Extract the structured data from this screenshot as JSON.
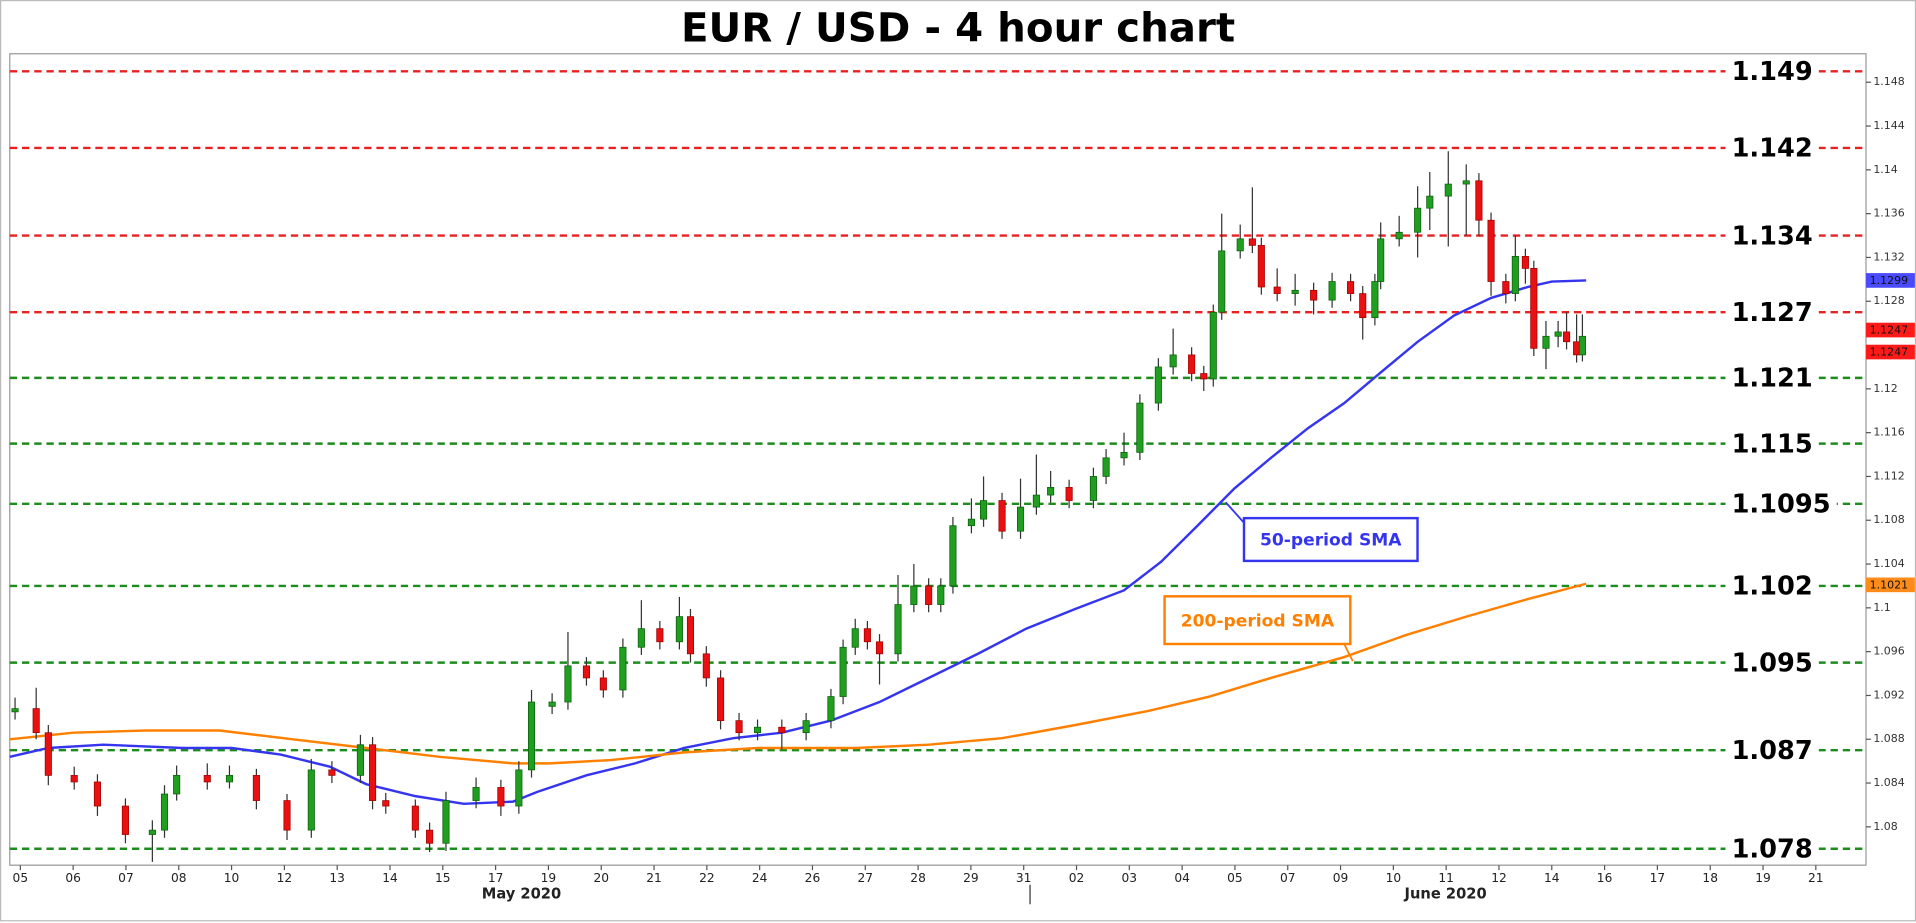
{
  "chart_data": {
    "type": "candlestick",
    "title": "EUR / USD - 4 hour chart",
    "xlim": [
      -0.2,
      34.95
    ],
    "ylim": [
      1.0765,
      1.1506
    ],
    "yticks": [
      1.148,
      1.144,
      1.14,
      1.136,
      1.132,
      1.128,
      1.12,
      1.116,
      1.112,
      1.108,
      1.104,
      1.1,
      1.096,
      1.092,
      1.088,
      1.084,
      1.08
    ],
    "xticks": [
      {
        "value": 0,
        "label": "05"
      },
      {
        "value": 1,
        "label": "06"
      },
      {
        "value": 2,
        "label": "07"
      },
      {
        "value": 3,
        "label": "08"
      },
      {
        "value": 4,
        "label": "10"
      },
      {
        "value": 5,
        "label": "12"
      },
      {
        "value": 6,
        "label": "13"
      },
      {
        "value": 7,
        "label": "14"
      },
      {
        "value": 8,
        "label": "15"
      },
      {
        "value": 9,
        "label": "17"
      },
      {
        "value": 10,
        "label": "19"
      },
      {
        "value": 11,
        "label": "20"
      },
      {
        "value": 12,
        "label": "21"
      },
      {
        "value": 13,
        "label": "22"
      },
      {
        "value": 14,
        "label": "24"
      },
      {
        "value": 15,
        "label": "26"
      },
      {
        "value": 16,
        "label": "27"
      },
      {
        "value": 17,
        "label": "28"
      },
      {
        "value": 18,
        "label": "29"
      },
      {
        "value": 19,
        "label": "31"
      },
      {
        "value": 20,
        "label": "02"
      },
      {
        "value": 21,
        "label": "03"
      },
      {
        "value": 22,
        "label": "04"
      },
      {
        "value": 23,
        "label": "05"
      },
      {
        "value": 24,
        "label": "07"
      },
      {
        "value": 25,
        "label": "09"
      },
      {
        "value": 26,
        "label": "10"
      },
      {
        "value": 27,
        "label": "11"
      },
      {
        "value": 28,
        "label": "12"
      },
      {
        "value": 29,
        "label": "14"
      },
      {
        "value": 30,
        "label": "16"
      },
      {
        "value": 31,
        "label": "17"
      },
      {
        "value": 32,
        "label": "18"
      },
      {
        "value": 33,
        "label": "19"
      },
      {
        "value": 34,
        "label": "21"
      }
    ],
    "month_labels": [
      {
        "x": 9.49,
        "text": "May 2020"
      },
      {
        "x": 26.99,
        "text": "June 2020"
      }
    ],
    "month_separators": [
      19.12
    ],
    "up_color": "#1f9e1f",
    "down_color": "#e81010",
    "candles": [
      [
        -0.1,
        1.0905,
        1.0918,
        1.0898,
        1.0908
      ],
      [
        0.3,
        1.0908,
        1.0927,
        1.088,
        1.0886
      ],
      [
        0.53,
        1.0886,
        1.0893,
        1.0838,
        1.0847
      ],
      [
        1.02,
        1.0847,
        1.0855,
        1.0834,
        1.0841
      ],
      [
        1.46,
        1.0841,
        1.0848,
        1.081,
        1.0819
      ],
      [
        1.99,
        1.0819,
        1.0826,
        1.0785,
        1.0793
      ],
      [
        2.5,
        1.0793,
        1.0806,
        1.0768,
        1.0797
      ],
      [
        2.73,
        1.0797,
        1.0838,
        1.079,
        1.083
      ],
      [
        2.96,
        1.083,
        1.0856,
        1.0824,
        1.0847
      ],
      [
        3.54,
        1.0847,
        1.0858,
        1.0834,
        1.0841
      ],
      [
        3.96,
        1.0841,
        1.0856,
        1.0835,
        1.0847
      ],
      [
        4.47,
        1.0847,
        1.0853,
        1.0816,
        1.0824
      ],
      [
        5.05,
        1.0824,
        1.083,
        1.0788,
        1.0797
      ],
      [
        5.51,
        1.0797,
        1.0862,
        1.079,
        1.0852
      ],
      [
        5.9,
        1.0852,
        1.086,
        1.084,
        1.0847
      ],
      [
        6.44,
        1.0847,
        1.0884,
        1.084,
        1.0875
      ],
      [
        6.67,
        1.0875,
        1.0882,
        1.0816,
        1.0824
      ],
      [
        6.92,
        1.0824,
        1.0831,
        1.0812,
        1.0819
      ],
      [
        7.48,
        1.0819,
        1.0825,
        1.079,
        1.0797
      ],
      [
        7.75,
        1.0797,
        1.0804,
        1.0777,
        1.0785
      ],
      [
        8.06,
        1.0785,
        1.0832,
        1.0778,
        1.0824
      ],
      [
        8.63,
        1.0824,
        1.0845,
        1.0817,
        1.0836
      ],
      [
        9.1,
        1.0836,
        1.0843,
        1.081,
        1.0819
      ],
      [
        9.44,
        1.0819,
        1.086,
        1.0812,
        1.0852
      ],
      [
        9.68,
        1.0852,
        1.0925,
        1.0845,
        1.0914
      ],
      [
        10.07,
        1.091,
        1.0922,
        1.0903,
        1.0914
      ],
      [
        10.37,
        1.0914,
        1.0978,
        1.0907,
        1.0947
      ],
      [
        10.72,
        1.0947,
        1.0955,
        1.0929,
        1.0936
      ],
      [
        11.04,
        1.0936,
        1.0943,
        1.0918,
        1.0925
      ],
      [
        11.41,
        1.0925,
        1.0972,
        1.0918,
        1.0964
      ],
      [
        11.76,
        1.0964,
        1.1007,
        1.0957,
        1.0981
      ],
      [
        12.11,
        1.0981,
        1.0988,
        1.0962,
        1.0969
      ],
      [
        12.48,
        1.0969,
        1.101,
        1.0962,
        1.0992
      ],
      [
        12.69,
        1.0992,
        1.0999,
        1.095,
        1.0958
      ],
      [
        12.99,
        1.0958,
        1.0965,
        1.0928,
        1.0936
      ],
      [
        13.26,
        1.0936,
        1.0943,
        1.0889,
        1.0897
      ],
      [
        13.61,
        1.0897,
        1.0904,
        1.0879,
        1.0886
      ],
      [
        13.96,
        1.0886,
        1.0898,
        1.0879,
        1.0891
      ],
      [
        14.42,
        1.0891,
        1.0898,
        1.0871,
        1.0886
      ],
      [
        14.88,
        1.0886,
        1.0904,
        1.0879,
        1.0897
      ],
      [
        15.35,
        1.0897,
        1.0926,
        1.089,
        1.0919
      ],
      [
        15.58,
        1.0919,
        1.0971,
        1.0912,
        1.0964
      ],
      [
        15.81,
        1.0964,
        1.099,
        1.0957,
        1.0981
      ],
      [
        16.04,
        1.0981,
        1.0988,
        1.0962,
        1.0969
      ],
      [
        16.27,
        1.0969,
        1.0976,
        1.093,
        1.0958
      ],
      [
        16.62,
        1.0958,
        1.103,
        1.0951,
        1.1003
      ],
      [
        16.92,
        1.1003,
        1.104,
        1.0996,
        1.102
      ],
      [
        17.2,
        1.102,
        1.1027,
        1.0996,
        1.1003
      ],
      [
        17.43,
        1.1003,
        1.1027,
        1.0996,
        1.102
      ],
      [
        17.66,
        1.102,
        1.1083,
        1.1013,
        1.1075
      ],
      [
        18.01,
        1.1075,
        1.11,
        1.1068,
        1.1081
      ],
      [
        18.24,
        1.1081,
        1.112,
        1.1074,
        1.1098
      ],
      [
        18.59,
        1.1098,
        1.1105,
        1.1063,
        1.107
      ],
      [
        18.94,
        1.107,
        1.1118,
        1.1063,
        1.1092
      ],
      [
        19.24,
        1.1092,
        1.114,
        1.1085,
        1.1103
      ],
      [
        19.51,
        1.1103,
        1.1125,
        1.1096,
        1.111
      ],
      [
        19.86,
        1.111,
        1.1117,
        1.1091,
        1.1098
      ],
      [
        20.32,
        1.1098,
        1.1128,
        1.1091,
        1.112
      ],
      [
        20.56,
        1.112,
        1.1145,
        1.1113,
        1.1137
      ],
      [
        20.9,
        1.1137,
        1.116,
        1.113,
        1.1142
      ],
      [
        21.2,
        1.1142,
        1.1195,
        1.1135,
        1.1187
      ],
      [
        21.55,
        1.1187,
        1.1228,
        1.118,
        1.122
      ],
      [
        21.83,
        1.122,
        1.1255,
        1.1213,
        1.1231
      ],
      [
        22.18,
        1.1231,
        1.1238,
        1.1207,
        1.1214
      ],
      [
        22.41,
        1.1214,
        1.1221,
        1.1198,
        1.1209
      ],
      [
        22.59,
        1.1209,
        1.1277,
        1.1202,
        1.127
      ],
      [
        22.75,
        1.127,
        1.136,
        1.1263,
        1.1326
      ],
      [
        23.1,
        1.1326,
        1.135,
        1.1319,
        1.1337
      ],
      [
        23.33,
        1.1337,
        1.1384,
        1.1324,
        1.1331
      ],
      [
        23.5,
        1.1331,
        1.1338,
        1.1286,
        1.1293
      ],
      [
        23.8,
        1.1293,
        1.131,
        1.128,
        1.1287
      ],
      [
        24.14,
        1.1287,
        1.1305,
        1.1276,
        1.129
      ],
      [
        24.49,
        1.129,
        1.1297,
        1.1268,
        1.1281
      ],
      [
        24.84,
        1.1281,
        1.1306,
        1.1274,
        1.1298
      ],
      [
        25.19,
        1.1298,
        1.1305,
        1.128,
        1.1287
      ],
      [
        25.42,
        1.1287,
        1.1294,
        1.1245,
        1.1265
      ],
      [
        25.65,
        1.1265,
        1.1305,
        1.1258,
        1.1298
      ],
      [
        25.76,
        1.1298,
        1.1352,
        1.1291,
        1.1337
      ],
      [
        26.11,
        1.1337,
        1.1358,
        1.133,
        1.1343
      ],
      [
        26.46,
        1.1343,
        1.1385,
        1.132,
        1.1365
      ],
      [
        26.69,
        1.1365,
        1.1398,
        1.1345,
        1.1376
      ],
      [
        27.04,
        1.1376,
        1.1417,
        1.133,
        1.1387
      ],
      [
        27.38,
        1.1387,
        1.1405,
        1.134,
        1.139
      ],
      [
        27.62,
        1.139,
        1.1397,
        1.134,
        1.1354
      ],
      [
        27.85,
        1.1354,
        1.1361,
        1.1285,
        1.1298
      ],
      [
        28.13,
        1.1298,
        1.1305,
        1.1278,
        1.1287
      ],
      [
        28.31,
        1.1287,
        1.134,
        1.128,
        1.1321
      ],
      [
        28.5,
        1.1321,
        1.1328,
        1.1296,
        1.131
      ],
      [
        28.66,
        1.131,
        1.1317,
        1.123,
        1.1237
      ],
      [
        28.89,
        1.1237,
        1.1262,
        1.1218,
        1.1248
      ],
      [
        29.12,
        1.1248,
        1.1262,
        1.1238,
        1.1252
      ],
      [
        29.28,
        1.1252,
        1.127,
        1.1236,
        1.1243
      ],
      [
        29.47,
        1.1243,
        1.1268,
        1.1224,
        1.1231
      ],
      [
        29.58,
        1.1231,
        1.1268,
        1.1225,
        1.1248
      ]
    ],
    "series": [
      {
        "name": "50-period SMA",
        "color": "#3535f0",
        "x": [
          -0.2,
          0.53,
          1.57,
          3.08,
          4.0,
          4.93,
          5.86,
          6.55,
          7.48,
          8.4,
          9.33,
          9.79,
          10.72,
          11.64,
          12.57,
          13.5,
          14.42,
          15.35,
          16.27,
          17.2,
          18.13,
          19.05,
          19.98,
          20.9,
          21.6,
          22.29,
          22.99,
          23.68,
          24.38,
          25.07,
          25.76,
          26.46,
          27.15,
          27.85,
          28.54,
          29.0,
          29.65
        ],
        "values": [
          1.0864,
          1.0872,
          1.0875,
          1.0872,
          1.0872,
          1.0866,
          1.0855,
          1.0839,
          1.0828,
          1.0821,
          1.0823,
          1.0832,
          1.0847,
          1.0858,
          1.0872,
          1.0881,
          1.0886,
          1.0897,
          1.0914,
          1.0936,
          1.0958,
          1.0981,
          1.0999,
          1.1016,
          1.1042,
          1.1075,
          1.1109,
          1.1137,
          1.1164,
          1.1187,
          1.1215,
          1.1243,
          1.1267,
          1.1283,
          1.1293,
          1.1298,
          1.1299
        ]
      },
      {
        "name": "200-period SMA",
        "color": "#ff8000",
        "x": [
          -0.2,
          1.0,
          2.38,
          3.77,
          5.16,
          6.55,
          7.94,
          9.33,
          10.02,
          11.18,
          12.57,
          13.96,
          15.81,
          17.2,
          18.59,
          19.98,
          21.37,
          22.52,
          23.68,
          25.07,
          26.23,
          27.38,
          28.54,
          29.65
        ],
        "values": [
          1.088,
          1.0886,
          1.0888,
          1.0888,
          1.088,
          1.0872,
          1.0864,
          1.0858,
          1.0858,
          1.0861,
          1.0868,
          1.0872,
          1.0872,
          1.0875,
          1.0881,
          1.0893,
          1.0906,
          1.0919,
          1.0936,
          1.0955,
          1.0975,
          1.0992,
          1.1008,
          1.1022
        ]
      }
    ],
    "levels": [
      {
        "value": 1.149,
        "color": "#e82020"
      },
      {
        "value": 1.142,
        "color": "#e82020"
      },
      {
        "value": 1.134,
        "color": "#e82020"
      },
      {
        "value": 1.127,
        "color": "#e82020"
      },
      {
        "value": 1.121,
        "color": "#1c8c1c"
      },
      {
        "value": 1.115,
        "color": "#1c8c1c"
      },
      {
        "value": 1.1095,
        "color": "#1c8c1c"
      },
      {
        "value": 1.102,
        "color": "#1c8c1c"
      },
      {
        "value": 1.095,
        "color": "#1c8c1c"
      },
      {
        "value": 1.087,
        "color": "#1c8c1c"
      },
      {
        "value": 1.078,
        "color": "#1c8c1c"
      }
    ],
    "price_labels": [
      {
        "value": 1.1299,
        "color": "#4a4aff"
      },
      {
        "value": 1.1247,
        "color": "#ff1a1a"
      },
      {
        "value": 1.1247,
        "color": "#ff1a1a"
      },
      {
        "value": 1.1021,
        "color": "#ff8c1a"
      }
    ]
  }
}
